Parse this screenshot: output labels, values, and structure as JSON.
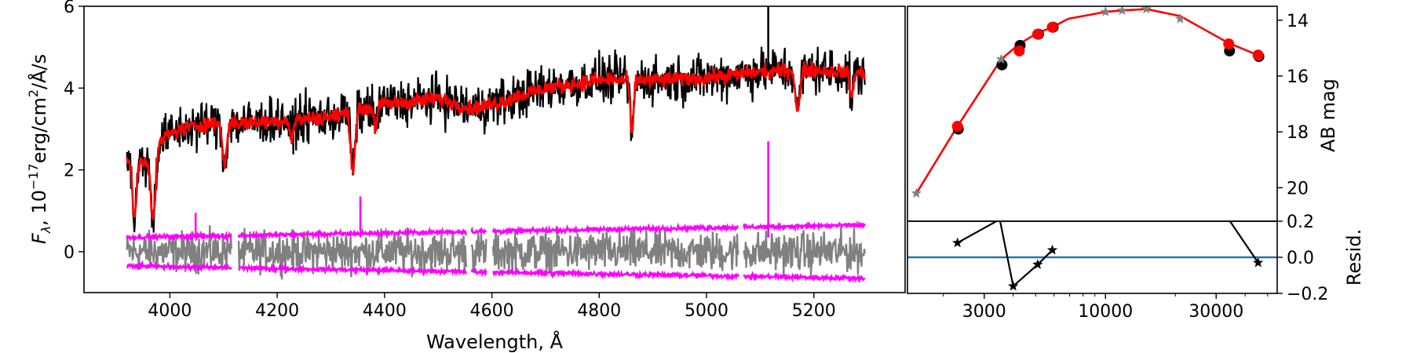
{
  "chart_data": [
    {
      "id": "spectrum",
      "type": "line",
      "xlabel": "Wavelength, Å",
      "ylabel_parts": {
        "pre": "F",
        "sub": "λ",
        "mid": ", 10",
        "sup1": "−17",
        "mid2": "erg/cm",
        "sup2": "2",
        "post": "/Å/s"
      },
      "xlim": [
        3840,
        5370
      ],
      "ylim": [
        -1,
        6
      ],
      "xticks": [
        4000,
        4200,
        4400,
        4600,
        4800,
        5000,
        5200
      ],
      "yticks": [
        0,
        2,
        4,
        6
      ],
      "grid": false,
      "wavelength_range": [
        3920,
        5295
      ],
      "gaps": [
        [
          4115,
          4128
        ],
        [
          4553,
          4562
        ],
        [
          4590,
          4602
        ],
        [
          5060,
          5068
        ]
      ],
      "continuum": {
        "x": [
          3920,
          3960,
          3990,
          4020,
          4080,
          4150,
          4200,
          4300,
          4400,
          4500,
          4560,
          4600,
          4700,
          4800,
          4900,
          5000,
          5100,
          5200,
          5295
        ],
        "y": [
          2.3,
          2.2,
          2.8,
          3.0,
          3.15,
          3.15,
          3.2,
          3.3,
          3.6,
          3.75,
          3.5,
          3.6,
          4.0,
          4.2,
          4.2,
          4.25,
          4.4,
          4.45,
          4.35
        ]
      },
      "absorption_lines": [
        {
          "x": 3934,
          "depth": 1.4,
          "width": 4
        },
        {
          "x": 3969,
          "depth": 1.6,
          "width": 4
        },
        {
          "x": 4102,
          "depth": 1.0,
          "width": 4
        },
        {
          "x": 4227,
          "depth": 0.5,
          "width": 3
        },
        {
          "x": 4341,
          "depth": 1.4,
          "width": 4
        },
        {
          "x": 4383,
          "depth": 0.5,
          "width": 3
        },
        {
          "x": 4861,
          "depth": 1.4,
          "width": 3
        },
        {
          "x": 5170,
          "depth": 1.0,
          "width": 4
        },
        {
          "x": 5270,
          "depth": 0.6,
          "width": 3
        }
      ],
      "series": [
        {
          "name": "",
          "role": "observed",
          "color": "#000000",
          "noise": 0.38
        },
        {
          "name": "",
          "role": "model",
          "color": "#ff0000",
          "noise": 0.12
        },
        {
          "name": "",
          "role": "residual",
          "color": "#808080",
          "noise": 0.3
        },
        {
          "name": "",
          "role": "error_upper",
          "color": "#ff00ff",
          "y_start": 0.35,
          "y_end": 0.65
        },
        {
          "name": "",
          "role": "error_lower",
          "color": "#ff00ff",
          "y_start": -0.35,
          "y_end": -0.65
        }
      ],
      "spikes": [
        {
          "x": 5115,
          "top": 6.0,
          "series": "observed"
        },
        {
          "x": 5115,
          "top": 2.7,
          "series": "error_upper"
        },
        {
          "x": 4355,
          "top": 1.35,
          "series": "error_upper"
        },
        {
          "x": 4048,
          "top": 0.95,
          "series": "error_upper"
        }
      ]
    },
    {
      "id": "sed",
      "type": "scatter",
      "ylabel": "AB mag",
      "xscale": "log",
      "yinvert": true,
      "xlim": [
        1400,
        55000
      ],
      "ylim": [
        21.2,
        13.5
      ],
      "xticks": [
        3000,
        10000,
        30000
      ],
      "xticklabels": [
        "3000",
        "10000",
        "30000"
      ],
      "yticks": [
        14,
        16,
        18,
        20
      ],
      "model_line": {
        "color": "#ff0000",
        "x": [
          1530,
          2300,
          3550,
          4250,
          5100,
          5900,
          6900,
          10000,
          11800,
          15000,
          21000,
          34000,
          45500
        ],
        "y": [
          20.2,
          17.8,
          15.4,
          14.85,
          14.45,
          14.25,
          13.95,
          13.7,
          13.65,
          13.6,
          13.85,
          14.82,
          15.25
        ]
      },
      "observed_points": {
        "color": "#000000",
        "x": [
          2300,
          3550,
          4250,
          5100,
          5900,
          34000,
          45500
        ],
        "y": [
          17.9,
          15.6,
          14.9,
          14.5,
          14.25,
          15.1,
          15.3
        ]
      },
      "model_points": {
        "color": "#ff0000",
        "x": [
          2300,
          4250,
          5100,
          5900,
          34000,
          45500
        ],
        "y": [
          17.8,
          15.1,
          14.5,
          14.25,
          14.85,
          15.25
        ]
      },
      "star_points": {
        "color": "#808080",
        "x": [
          1530,
          3550,
          10000,
          11800,
          15000,
          21000
        ],
        "y": [
          20.2,
          15.4,
          13.7,
          13.65,
          13.6,
          13.95
        ]
      }
    },
    {
      "id": "residuals",
      "type": "scatter",
      "ylabel": "Resid.",
      "xscale": "log",
      "xlim": [
        1400,
        55000
      ],
      "ylim": [
        -0.2,
        0.2
      ],
      "yticks": [
        -0.2,
        0.0,
        0.2
      ],
      "yticklabels": [
        "−0.2",
        "0.0",
        "0.2"
      ],
      "zero_line_color": "#1f77b4",
      "points": {
        "x": [
          2300,
          3500,
          4000,
          5100,
          5900
        ],
        "y": [
          0.08,
          0.21,
          -0.16,
          -0.04,
          0.04
        ]
      },
      "tail_segment": {
        "x": [
          34000,
          45500
        ],
        "y": [
          0.21,
          -0.03
        ]
      }
    }
  ]
}
